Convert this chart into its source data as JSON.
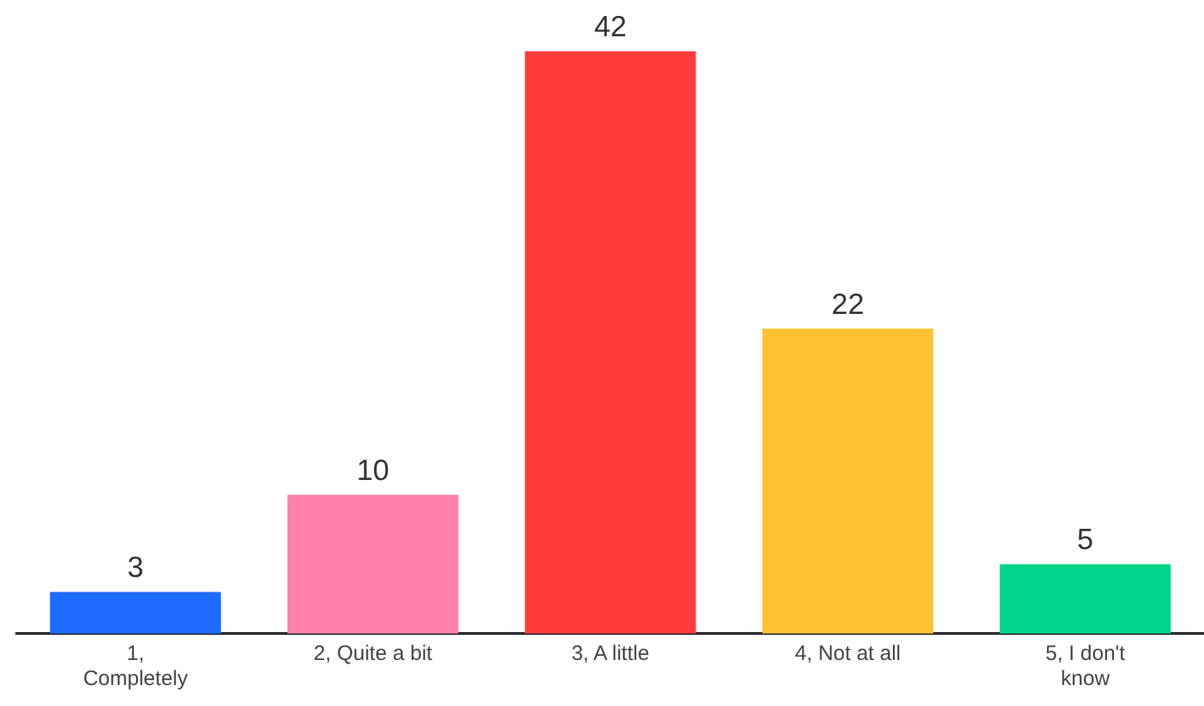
{
  "chart_data": {
    "type": "bar",
    "categories": [
      "1, Completely",
      "2, Quite a bit",
      "3, A little",
      "4, Not at all",
      "5, I don't know"
    ],
    "values": [
      3,
      10,
      42,
      22,
      5
    ],
    "colors": [
      "#1f6bff",
      "#ff80ab",
      "#ff3b3b",
      "#ffc233",
      "#00d48a"
    ],
    "data_labels": true,
    "grid": false,
    "legend": false
  }
}
